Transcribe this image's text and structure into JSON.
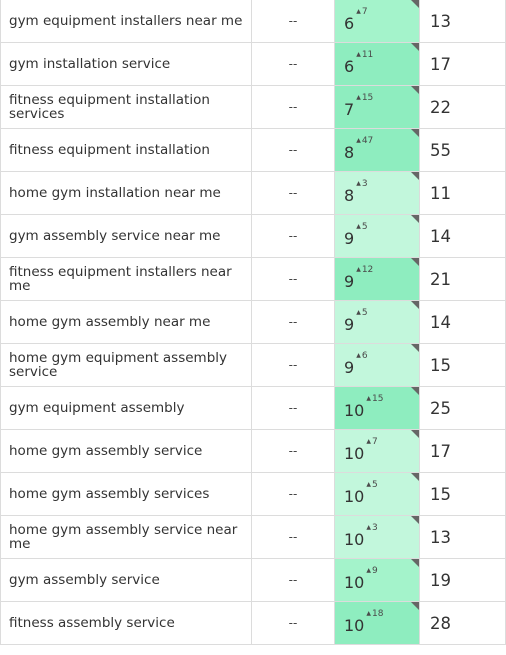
{
  "colors": {
    "light": "#c2f7dc",
    "medium": "#a4f3cb",
    "strong": "#8eedbf",
    "border": "#dcdcdc"
  },
  "rows": [
    {
      "keyword": "gym equipment installers near me",
      "volume": "--",
      "rank": "6",
      "change": "7",
      "prev": "13",
      "shade": "g-med"
    },
    {
      "keyword": "gym installation service",
      "volume": "--",
      "rank": "6",
      "change": "11",
      "prev": "17",
      "shade": "g-strong"
    },
    {
      "keyword": "fitness equipment installation services",
      "volume": "--",
      "rank": "7",
      "change": "15",
      "prev": "22",
      "shade": "g-strong"
    },
    {
      "keyword": "fitness equipment installation",
      "volume": "--",
      "rank": "8",
      "change": "47",
      "prev": "55",
      "shade": "g-strong"
    },
    {
      "keyword": "home gym installation near me",
      "volume": "--",
      "rank": "8",
      "change": "3",
      "prev": "11",
      "shade": "g-light"
    },
    {
      "keyword": "gym assembly service near me",
      "volume": "--",
      "rank": "9",
      "change": "5",
      "prev": "14",
      "shade": "g-light"
    },
    {
      "keyword": "fitness equipment installers near me",
      "volume": "--",
      "rank": "9",
      "change": "12",
      "prev": "21",
      "shade": "g-strong"
    },
    {
      "keyword": "home gym assembly near me",
      "volume": "--",
      "rank": "9",
      "change": "5",
      "prev": "14",
      "shade": "g-light"
    },
    {
      "keyword": "home gym equipment assembly service",
      "volume": "--",
      "rank": "9",
      "change": "6",
      "prev": "15",
      "shade": "g-light"
    },
    {
      "keyword": "gym equipment assembly",
      "volume": "--",
      "rank": "10",
      "change": "15",
      "prev": "25",
      "shade": "g-strong"
    },
    {
      "keyword": "home gym assembly service",
      "volume": "--",
      "rank": "10",
      "change": "7",
      "prev": "17",
      "shade": "g-light"
    },
    {
      "keyword": "home gym assembly services",
      "volume": "--",
      "rank": "10",
      "change": "5",
      "prev": "15",
      "shade": "g-light"
    },
    {
      "keyword": "home gym assembly service near me",
      "volume": "--",
      "rank": "10",
      "change": "3",
      "prev": "13",
      "shade": "g-light"
    },
    {
      "keyword": "gym assembly service",
      "volume": "--",
      "rank": "10",
      "change": "9",
      "prev": "19",
      "shade": "g-med"
    },
    {
      "keyword": "fitness assembly service",
      "volume": "--",
      "rank": "10",
      "change": "18",
      "prev": "28",
      "shade": "g-strong"
    }
  ]
}
